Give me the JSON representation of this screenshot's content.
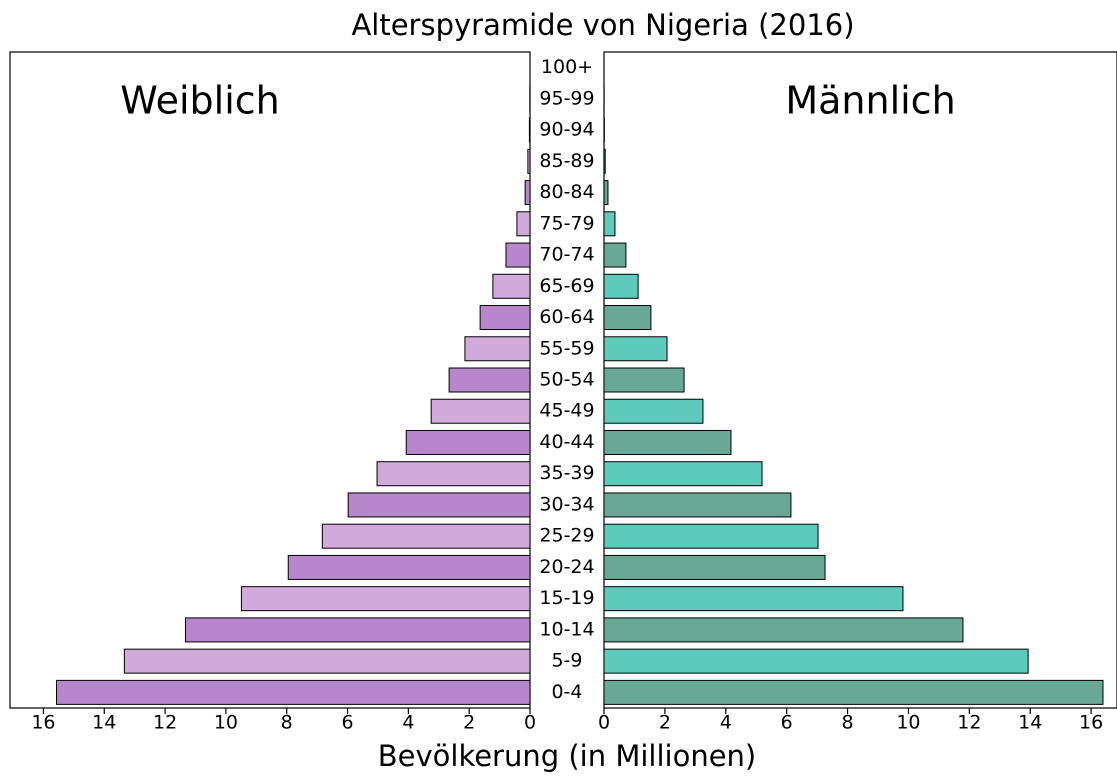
{
  "chart_data": {
    "type": "pyramid",
    "title": "Alterspyramide von Nigeria (2016)",
    "xlabel": "Bevölkerung (in Millionen)",
    "categories": [
      "0-4",
      "5-9",
      "10-14",
      "15-19",
      "20-24",
      "25-29",
      "30-34",
      "35-39",
      "40-44",
      "45-49",
      "50-54",
      "55-59",
      "60-64",
      "65-69",
      "70-74",
      "75-79",
      "80-84",
      "85-89",
      "90-94",
      "95-99",
      "100+"
    ],
    "series": [
      {
        "name": "Weiblich",
        "side": "left",
        "colors": [
          "#b886cc",
          "#d1a9da"
        ],
        "xlim": [
          0,
          17.1
        ],
        "xticks": [
          0,
          2,
          4,
          6,
          8,
          10,
          12,
          14,
          16
        ],
        "values": [
          15.57,
          13.34,
          11.33,
          9.49,
          7.95,
          6.83,
          5.98,
          5.03,
          4.07,
          3.25,
          2.66,
          2.14,
          1.64,
          1.22,
          0.79,
          0.43,
          0.16,
          0.07,
          0.02,
          0.005,
          0
        ]
      },
      {
        "name": "Männlich",
        "side": "right",
        "colors": [
          "#6aa896",
          "#5ecabb"
        ],
        "xlim": [
          0,
          16.85
        ],
        "xticks": [
          0,
          2,
          4,
          6,
          8,
          10,
          12,
          14,
          16
        ],
        "values": [
          16.39,
          13.93,
          11.79,
          9.82,
          7.26,
          7.03,
          6.14,
          5.19,
          4.17,
          3.25,
          2.63,
          2.07,
          1.54,
          1.12,
          0.72,
          0.36,
          0.13,
          0.04,
          0.01,
          0.002,
          0
        ]
      }
    ]
  }
}
